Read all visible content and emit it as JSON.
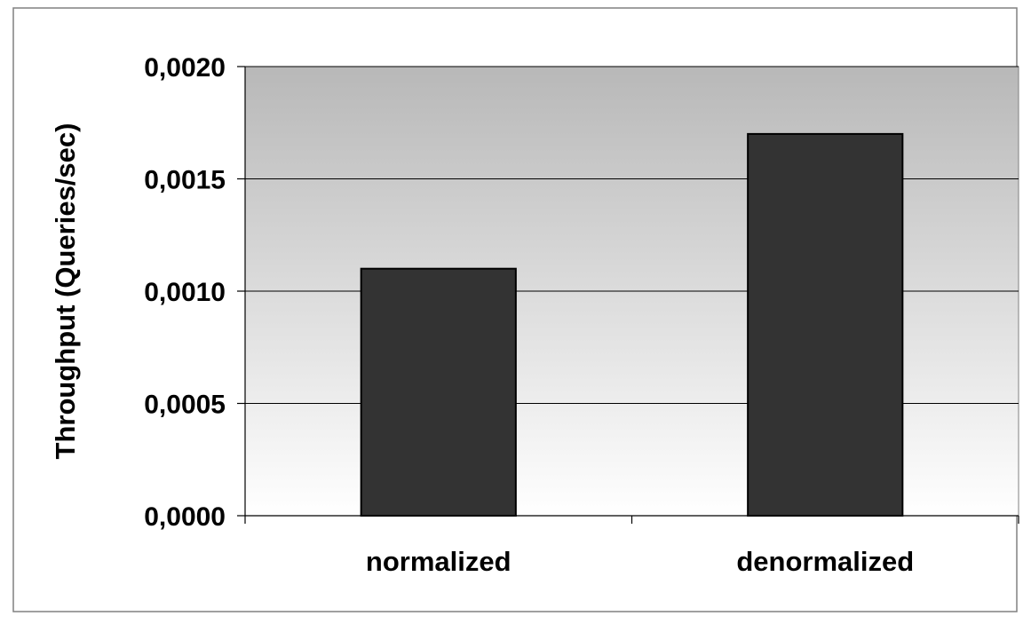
{
  "chart_data": {
    "type": "bar",
    "title": "",
    "xlabel": "",
    "ylabel": "Throughput (Queries/sec)",
    "categories": [
      "normalized",
      "denormalized"
    ],
    "values": [
      0.0011,
      0.0017
    ],
    "ylim": [
      0,
      0.002
    ],
    "yticks": [
      0,
      0.0005,
      0.001,
      0.0015,
      0.002
    ],
    "ytick_labels": [
      "0,0000",
      "0,0005",
      "0,0010",
      "0,0015",
      "0,0020"
    ],
    "grid": true,
    "legend": "none",
    "colors": {
      "bar_fill": "#333333",
      "bar_stroke": "#000000",
      "plot_gradient_top": "#b8b8b8",
      "plot_gradient_bottom": "#ffffff",
      "gridline": "#000000",
      "border": "#808080"
    }
  }
}
